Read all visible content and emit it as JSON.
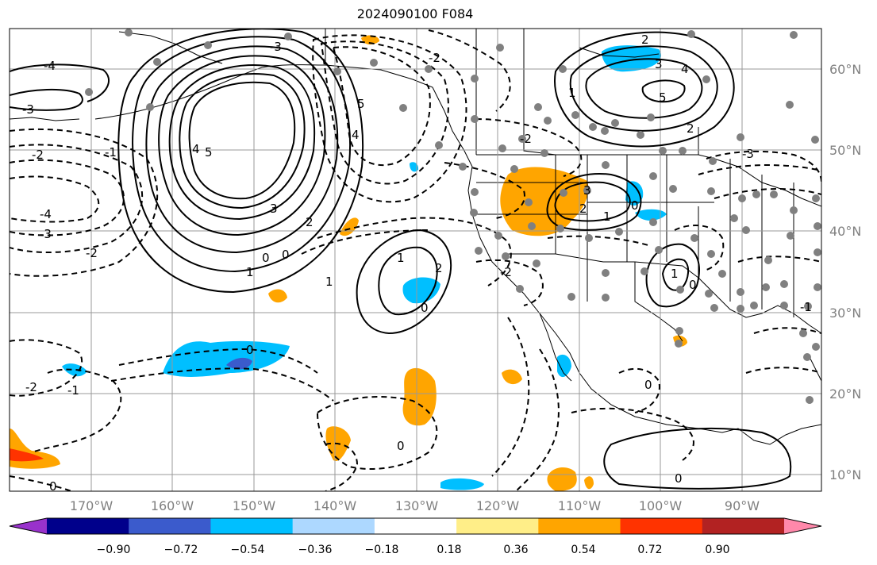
{
  "title": "2024090100 F084",
  "map": {
    "latitude_labels": [
      "60°N",
      "50°N",
      "40°N",
      "30°N",
      "20°N",
      "10°N"
    ],
    "longitude_labels": [
      "170°W",
      "160°W",
      "150°W",
      "140°W",
      "130°W",
      "120°W",
      "110°W",
      "100°W",
      "90°W"
    ],
    "contour_labels": [
      "-4",
      "-3",
      "-2",
      "-1",
      "0",
      "1",
      "2",
      "3",
      "4",
      "5",
      "-3",
      "-2",
      "-1",
      "0",
      "1",
      "2",
      "-2",
      "-1",
      "0",
      "1",
      "2",
      "3",
      "4",
      "5"
    ],
    "fill_colors": {
      "positive_orange": "#ffa500",
      "positive_red": "#ff3300",
      "negative_light_blue": "#00bfff",
      "negative_blue": "#3b5bcc"
    }
  },
  "colorbar": {
    "colors": [
      "#9932cc",
      "#00008b",
      "#3b5bcc",
      "#00bfff",
      "#add8ff",
      "#ffffff",
      "#ffee88",
      "#ffa500",
      "#ff3300",
      "#b22222",
      "#ff88aa"
    ],
    "tick_labels": [
      "−0.90",
      "−0.72",
      "−0.54",
      "−0.36",
      "−0.18",
      "0.18",
      "0.36",
      "0.54",
      "0.72",
      "0.90"
    ]
  }
}
